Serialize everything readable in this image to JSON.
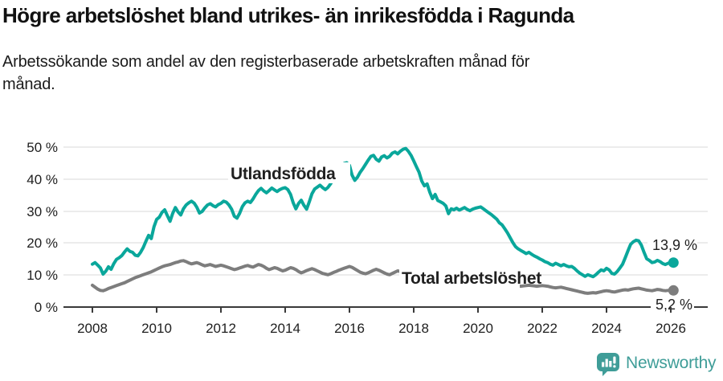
{
  "header": {
    "title": "Högre arbetslöshet bland utrikes- än inrikesfödda i Ragunda",
    "subtitle": "Arbetssökande som andel av den registerbaserade arbetskraften månad för månad."
  },
  "chart_data": {
    "type": "line",
    "title": "Högre arbetslöshet bland utrikes- än inrikesfödda i Ragunda",
    "xlabel": "",
    "ylabel": "Arbetssökande som andel av den registerbaserade arbetskraften",
    "x_unit": "monthly, decimal years",
    "x_start": "2008-01",
    "x_end": "2026-02",
    "x_ticks": [
      "2008",
      "2010",
      "2012",
      "2014",
      "2016",
      "2018",
      "2020",
      "2022",
      "2024",
      "2026"
    ],
    "y_ticks": [
      "0 %",
      "10 %",
      "20 %",
      "30 %",
      "40 %",
      "50 %"
    ],
    "y_tick_values": [
      0,
      10,
      20,
      30,
      40,
      50
    ],
    "ylim": [
      0,
      52
    ],
    "grid": "horizontal",
    "legend_position": "inline-labels",
    "series": [
      {
        "name": "Utlandsfödda",
        "color": "#0aa79b",
        "end_label": "13,9 %",
        "end_value": 13.9,
        "values": [
          13.4,
          13.9,
          13.1,
          12.2,
          10.3,
          11.2,
          12.6,
          11.8,
          13.6,
          14.9,
          15.4,
          16.1,
          17.2,
          18.2,
          17.4,
          17.1,
          16.2,
          16.0,
          17.1,
          18.6,
          20.6,
          22.4,
          21.4,
          25.1,
          27.4,
          28.1,
          29.6,
          30.4,
          28.6,
          26.8,
          29.3,
          31.1,
          29.7,
          28.8,
          30.7,
          31.9,
          32.6,
          33.1,
          32.5,
          31.2,
          29.4,
          29.9,
          31.0,
          31.9,
          32.3,
          31.7,
          31.3,
          32.0,
          32.4,
          33.1,
          32.8,
          31.9,
          30.6,
          28.4,
          27.8,
          29.3,
          31.4,
          32.6,
          33.1,
          32.7,
          33.8,
          35.2,
          36.4,
          37.1,
          36.3,
          35.7,
          36.4,
          37.2,
          36.6,
          36.1,
          36.7,
          37.1,
          37.3,
          36.7,
          35.2,
          32.6,
          30.7,
          32.4,
          33.4,
          31.8,
          30.6,
          32.9,
          35.4,
          36.9,
          37.5,
          38.1,
          37.3,
          36.7,
          37.4,
          38.6,
          40.1,
          41.6,
          42.9,
          43.6,
          44.9,
          45.1,
          44.3,
          41.2,
          39.6,
          40.6,
          42.1,
          43.3,
          44.6,
          45.9,
          47.1,
          47.4,
          46.2,
          45.6,
          46.9,
          47.3,
          46.6,
          47.1,
          48.1,
          48.5,
          47.9,
          48.7,
          49.3,
          49.6,
          48.7,
          47.4,
          45.7,
          43.9,
          42.1,
          39.4,
          37.9,
          38.5,
          35.9,
          33.9,
          35.2,
          33.3,
          32.9,
          32.4,
          31.6,
          29.2,
          30.7,
          30.4,
          30.9,
          30.3,
          30.7,
          31.1,
          30.5,
          30.1,
          30.6,
          30.9,
          31.1,
          31.3,
          30.7,
          30.1,
          29.5,
          28.9,
          28.2,
          27.5,
          26.3,
          25.7,
          24.5,
          23.2,
          21.7,
          20.2,
          18.9,
          18.2,
          17.7,
          17.2,
          16.7,
          17.1,
          16.5,
          16.0,
          15.6,
          15.1,
          14.7,
          14.2,
          13.9,
          13.4,
          13.1,
          13.7,
          13.3,
          12.9,
          13.3,
          12.9,
          12.6,
          12.7,
          12.1,
          11.3,
          10.6,
          10.1,
          9.6,
          10.1,
          9.8,
          9.5,
          10.1,
          10.9,
          11.6,
          11.3,
          12.1,
          11.6,
          10.5,
          10.3,
          11.1,
          12.2,
          13.4,
          15.4,
          17.6,
          19.6,
          20.4,
          20.9,
          20.7,
          19.4,
          17.1,
          15.1,
          14.6,
          13.9,
          14.1,
          14.6,
          14.2,
          13.6,
          13.3,
          13.7,
          14.1,
          13.9
        ]
      },
      {
        "name": "Total arbetslöshet",
        "color": "#7d7d7d",
        "end_label": "5,2 %",
        "end_value": 5.2,
        "values": [
          6.8,
          6.2,
          5.6,
          5.2,
          5.1,
          5.4,
          5.8,
          6.1,
          6.4,
          6.7,
          7.0,
          7.3,
          7.6,
          8.0,
          8.4,
          8.8,
          9.2,
          9.5,
          9.8,
          10.1,
          10.4,
          10.7,
          11.0,
          11.4,
          11.8,
          12.2,
          12.6,
          12.9,
          13.1,
          13.3,
          13.6,
          13.9,
          14.1,
          14.4,
          14.5,
          14.2,
          13.8,
          13.5,
          13.7,
          13.9,
          13.6,
          13.2,
          12.9,
          13.1,
          13.3,
          13.0,
          12.7,
          12.9,
          13.1,
          12.9,
          12.6,
          12.3,
          12.0,
          11.7,
          11.9,
          12.2,
          12.5,
          12.8,
          13.0,
          12.7,
          12.5,
          12.9,
          13.3,
          13.1,
          12.7,
          12.1,
          11.7,
          12.0,
          12.3,
          12.1,
          11.7,
          11.3,
          11.5,
          11.9,
          12.3,
          12.1,
          11.7,
          11.1,
          10.7,
          11.0,
          11.4,
          11.7,
          12.0,
          11.7,
          11.3,
          10.9,
          10.5,
          10.3,
          10.1,
          10.4,
          10.8,
          11.1,
          11.5,
          11.8,
          12.1,
          12.4,
          12.7,
          12.4,
          11.9,
          11.4,
          10.9,
          10.6,
          10.4,
          10.7,
          11.1,
          11.5,
          11.8,
          11.5,
          11.1,
          10.7,
          10.3,
          10.1,
          10.5,
          10.9,
          11.3,
          11.1,
          10.7,
          10.4,
          10.6,
          10.9,
          10.6,
          10.3,
          10.0,
          9.7,
          9.4,
          9.1,
          8.9,
          9.0,
          9.2,
          9.1,
          8.9,
          8.7,
          8.5,
          8.3,
          8.1,
          8.0,
          7.9,
          7.8,
          7.9,
          8.0,
          7.9,
          7.7,
          7.6,
          7.5,
          7.7,
          7.9,
          8.3,
          8.6,
          8.5,
          8.3,
          8.1,
          7.9,
          7.7,
          7.5,
          7.3,
          7.1,
          7.0,
          6.9,
          6.7,
          6.6,
          6.5,
          6.6,
          6.7,
          6.8,
          6.7,
          6.6,
          6.5,
          6.6,
          6.7,
          6.6,
          6.5,
          6.3,
          6.1,
          6.0,
          6.1,
          6.2,
          6.0,
          5.8,
          5.6,
          5.4,
          5.2,
          5.0,
          4.8,
          4.6,
          4.4,
          4.3,
          4.4,
          4.5,
          4.4,
          4.6,
          4.8,
          5.0,
          5.1,
          5.0,
          4.8,
          4.7,
          4.9,
          5.1,
          5.3,
          5.4,
          5.3,
          5.5,
          5.7,
          5.8,
          5.9,
          5.7,
          5.5,
          5.3,
          5.2,
          5.1,
          5.3,
          5.5,
          5.4,
          5.2,
          5.1,
          5.2,
          5.3,
          5.2
        ]
      }
    ]
  },
  "branding": {
    "name": "Newsworthy",
    "color": "#3f9d98"
  }
}
